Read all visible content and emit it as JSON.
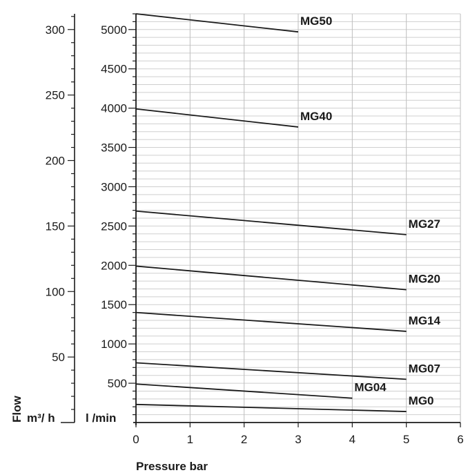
{
  "chart_data": {
    "type": "line",
    "title": "",
    "xlabel": "Pressure bar",
    "ylabel": "Flow",
    "y_units_left": "m³/ h",
    "y_units_right": "l /min",
    "xlim": [
      0,
      6
    ],
    "ylim_lmin": [
      0,
      5200
    ],
    "ylim_m3h": [
      0,
      312
    ],
    "x_ticks": [
      "0",
      "1",
      "2",
      "3",
      "4",
      "5",
      "6"
    ],
    "y_ticks_lmin": [
      "500",
      "1000",
      "1500",
      "2000",
      "2500",
      "3000",
      "3500",
      "4000",
      "4500",
      "5000"
    ],
    "y_ticks_m3h": [
      "50",
      "100",
      "150",
      "200",
      "250",
      "300"
    ],
    "grid": true,
    "series": [
      {
        "name": "MG50",
        "x": [
          0,
          3
        ],
        "y": [
          5200,
          4970
        ]
      },
      {
        "name": "MG40",
        "x": [
          0,
          3
        ],
        "y": [
          3990,
          3760
        ]
      },
      {
        "name": "MG27",
        "x": [
          0,
          5
        ],
        "y": [
          2690,
          2390
        ]
      },
      {
        "name": "MG20",
        "x": [
          0,
          5
        ],
        "y": [
          1990,
          1690
        ]
      },
      {
        "name": "MG14",
        "x": [
          0,
          5
        ],
        "y": [
          1400,
          1160
        ]
      },
      {
        "name": "MG07",
        "x": [
          0,
          5
        ],
        "y": [
          760,
          550
        ]
      },
      {
        "name": "MG04",
        "x": [
          0,
          4
        ],
        "y": [
          490,
          310
        ]
      },
      {
        "name": "MG0",
        "x": [
          0,
          5
        ],
        "y": [
          230,
          140
        ]
      }
    ]
  }
}
